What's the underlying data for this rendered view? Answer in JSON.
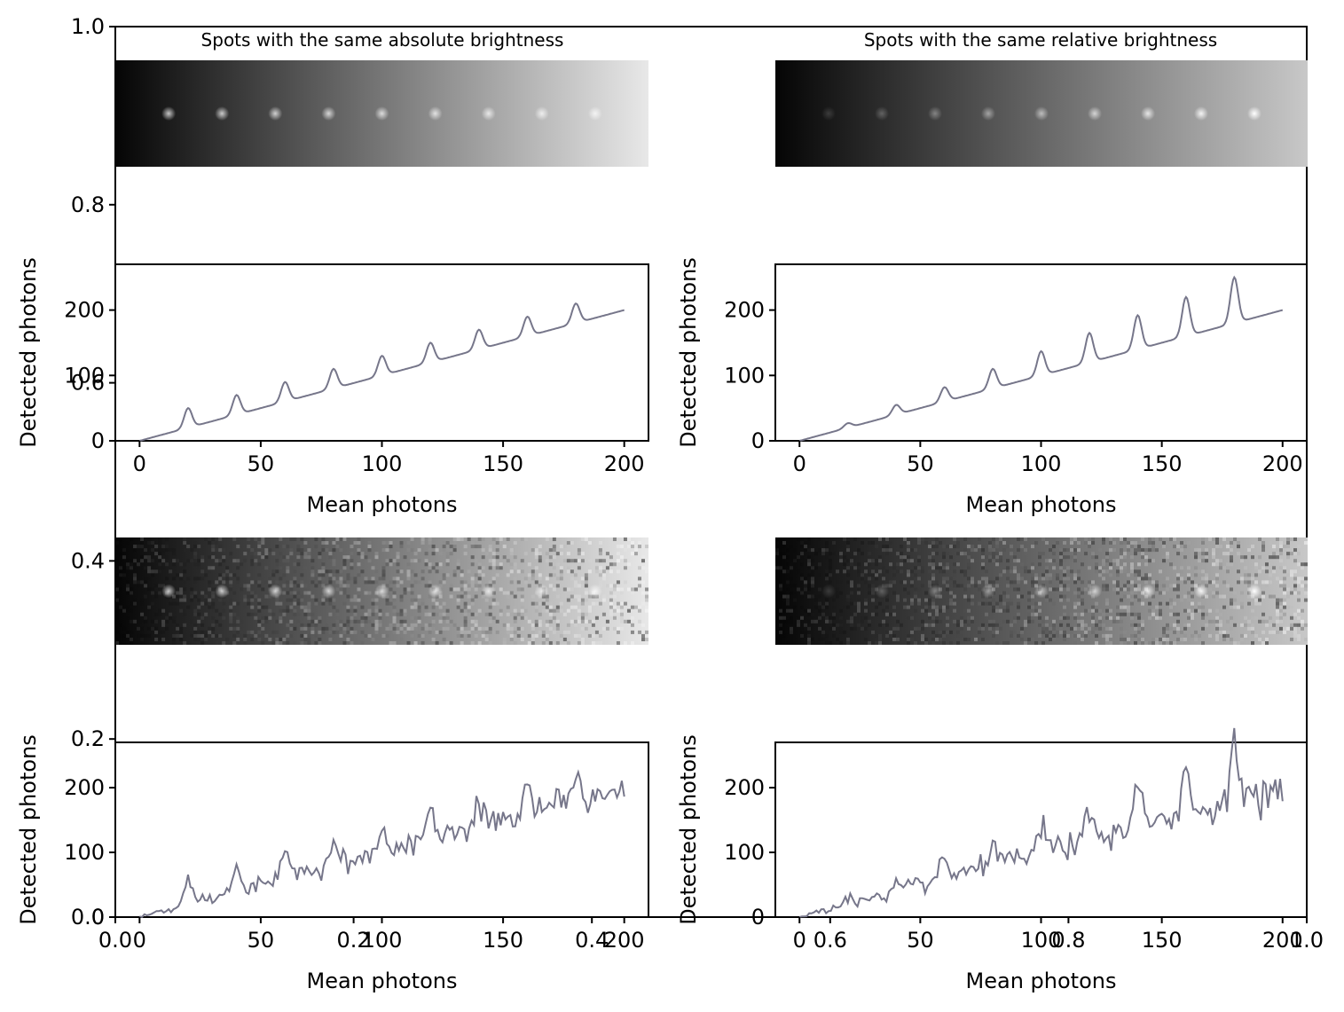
{
  "colors": {
    "line": "#76768a",
    "axes": "#000000",
    "background": "#ffffff"
  },
  "chart_data": {
    "type": "line",
    "background_axes": {
      "xlim": [
        0.0,
        1.0
      ],
      "ylim": [
        0.0,
        1.0
      ],
      "yticks": [
        "0.0",
        "0.2",
        "0.4",
        "0.6",
        "0.8",
        "1.0"
      ],
      "xticks": [
        "0.0",
        "0.2",
        "0.4",
        "0.6",
        "0.8",
        "1.0"
      ]
    },
    "titles": [
      "Spots with the same absolute brightness",
      "Spots with the same relative brightness"
    ],
    "spots_mean_photons": [
      20,
      40,
      60,
      80,
      100,
      120,
      140,
      160,
      180
    ],
    "panels": [
      {
        "id": "absolute-noise-free",
        "xlabel": "Mean photons",
        "ylabel": "Detected photons",
        "xlim": [
          -10,
          210
        ],
        "ylim": [
          0,
          270
        ],
        "xticks": [
          "0",
          "50",
          "100",
          "150",
          "200"
        ],
        "yticks": [
          "0",
          "100",
          "200"
        ],
        "series": [
          {
            "x": [
              0,
              20,
              40,
              60,
              80,
              100,
              120,
              140,
              160,
              180,
              200
            ],
            "y": [
              0,
              20,
              40,
              60,
              80,
              100,
              120,
              140,
              160,
              180,
              200
            ],
            "peak_height": [
              0,
              30,
              30,
              30,
              30,
              30,
              30,
              30,
              30,
              30,
              0
            ]
          }
        ]
      },
      {
        "id": "relative-noise-free",
        "xlabel": "Mean photons",
        "ylabel": "Detected photons",
        "xlim": [
          -10,
          210
        ],
        "ylim": [
          0,
          270
        ],
        "xticks": [
          "0",
          "50",
          "100",
          "150",
          "200"
        ],
        "yticks": [
          "0",
          "100",
          "200"
        ],
        "series": [
          {
            "x": [
              0,
              20,
              40,
              60,
              80,
              100,
              120,
              140,
              160,
              180,
              200
            ],
            "y": [
              0,
              20,
              40,
              60,
              80,
              100,
              120,
              140,
              160,
              180,
              200
            ],
            "peak_height": [
              0,
              7,
              15,
              22,
              30,
              37,
              45,
              52,
              60,
              70,
              0
            ]
          }
        ]
      },
      {
        "id": "absolute-noisy",
        "xlabel": "Mean photons",
        "ylabel": "Detected photons",
        "xlim": [
          -10,
          210
        ],
        "ylim": [
          0,
          270
        ],
        "xticks": [
          "0",
          "50",
          "100",
          "150",
          "200"
        ],
        "yticks": [
          "0",
          "100",
          "200"
        ],
        "series": [
          {
            "x": [
              0,
              20,
              40,
              60,
              80,
              100,
              120,
              140,
              160,
              180,
              200
            ],
            "y": [
              0,
              20,
              40,
              60,
              80,
              100,
              120,
              140,
              160,
              180,
              200
            ],
            "peak_height": [
              0,
              40,
              35,
              50,
              35,
              40,
              35,
              35,
              40,
              35,
              0
            ],
            "noise": true
          }
        ]
      },
      {
        "id": "relative-noisy",
        "xlabel": "Mean photons",
        "ylabel": "Detected photons",
        "xlim": [
          -10,
          210
        ],
        "ylim": [
          0,
          270
        ],
        "xticks": [
          "0",
          "50",
          "100",
          "150",
          "200"
        ],
        "yticks": [
          "0",
          "100",
          "200"
        ],
        "series": [
          {
            "x": [
              0,
              20,
              40,
              60,
              80,
              100,
              120,
              140,
              160,
              180,
              200
            ],
            "y": [
              0,
              20,
              40,
              60,
              80,
              100,
              120,
              140,
              160,
              180,
              200
            ],
            "peak_height": [
              0,
              8,
              15,
              25,
              30,
              40,
              45,
              60,
              70,
              85,
              0
            ],
            "noise": true
          }
        ]
      }
    ]
  }
}
